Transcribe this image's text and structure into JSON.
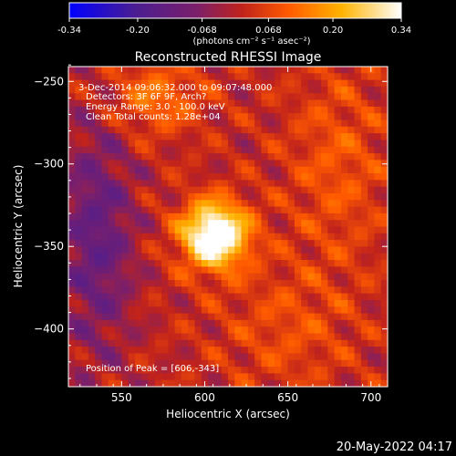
{
  "chart_data": {
    "type": "heatmap",
    "title": "Reconstructed RHESSI Image",
    "xlabel": "Heliocentric X (arcsec)",
    "ylabel": "Heliocentric Y (arcsec)",
    "xlim": [
      518,
      710
    ],
    "ylim": [
      -435,
      -241
    ],
    "xticks": [
      550,
      600,
      650,
      700
    ],
    "yticks": [
      -250,
      -300,
      -350,
      -400
    ],
    "colorbar": {
      "ticks": [
        "-0.34",
        "-0.20",
        "-0.068",
        "0.068",
        "0.20",
        "0.34"
      ],
      "range": [
        -0.34,
        0.34
      ],
      "unit_label": "(photons cm⁻² s⁻¹ asec⁻²)"
    },
    "annotations": [
      " 3-Dec-2014 09:06:32.000 to 09:07:48.000",
      "Detectors: 3F 6F 9F, Arch?",
      "Energy Range: 3.0 - 100.0 keV",
      "Clean    Total counts: 1.28e+04"
    ],
    "peak_label": "Position of Peak = [606,-343]",
    "peak": [
      606,
      -343
    ],
    "timestamp": "20-May-2022 04:17",
    "colormap": [
      "#0000ff",
      "#4b1d91",
      "#7a1f6c",
      "#b0223a",
      "#e23410",
      "#ff7d00",
      "#ffc21a",
      "#ffffff"
    ]
  }
}
